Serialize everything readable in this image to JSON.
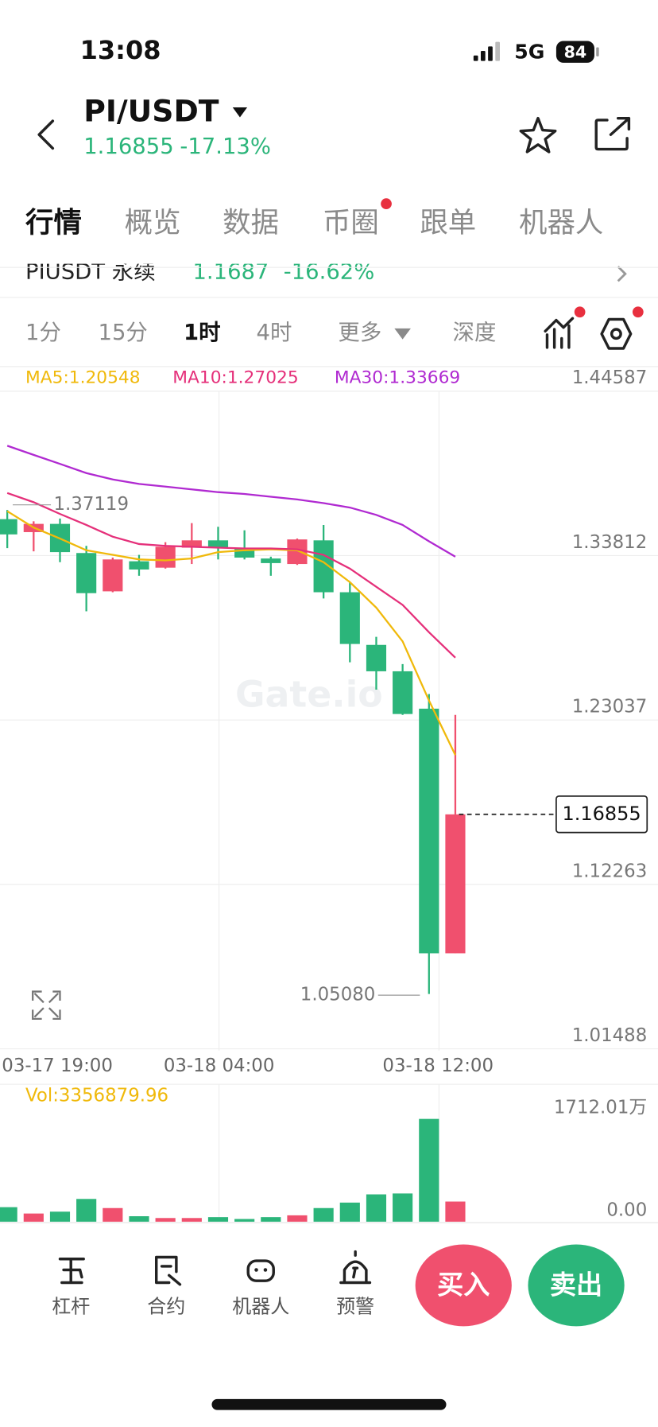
{
  "status_bar": {
    "time": "13:08",
    "network": "5G",
    "battery": "84"
  },
  "header": {
    "pair": "PI/USDT",
    "price": "1.16855",
    "change": "-17.13%"
  },
  "tabs": [
    "行情",
    "概览",
    "数据",
    "币圈",
    "跟单",
    "机器人"
  ],
  "perp_row": {
    "name": "PIUSDT 永续",
    "price": "1.1687",
    "change": "-16.62%"
  },
  "intervals": [
    "1分",
    "15分",
    "1时",
    "4时",
    "更多",
    "深度"
  ],
  "chart_data": [
    {
      "type": "candlestick",
      "open": [
        1.362,
        1.3535,
        1.3589,
        1.3398,
        1.3147,
        1.3344,
        1.3302,
        1.3433,
        1.3481,
        1.3428,
        1.3362,
        1.3326,
        1.3481,
        1.3141,
        1.2796,
        1.2623,
        1.2378,
        1.0775
      ],
      "high": [
        1.368,
        1.3606,
        1.3624,
        1.3445,
        1.3368,
        1.3386,
        1.3469,
        1.3594,
        1.357,
        1.3547,
        1.3374,
        1.3493,
        1.3582,
        1.3207,
        1.2849,
        1.267,
        1.2474,
        1.2337
      ],
      "low": [
        1.343,
        1.3409,
        1.3338,
        1.3016,
        1.3141,
        1.3249,
        1.3296,
        1.3326,
        1.3356,
        1.3356,
        1.3249,
        1.332,
        1.31,
        1.2682,
        1.2503,
        1.2337,
        1.0508,
        1.0775
      ],
      "close": [
        1.352,
        1.3589,
        1.3404,
        1.3135,
        1.3356,
        1.329,
        1.3439,
        1.3481,
        1.3433,
        1.3368,
        1.3332,
        1.3487,
        1.3141,
        1.2802,
        1.2623,
        1.2343,
        1.0775,
        1.16855
      ],
      "up_color": "#f0506e",
      "down_color": "#2bb57a",
      "series": [
        {
          "name": "MA5",
          "label": "MA5:1.20548",
          "color": "#f0b90b",
          "values": [
            1.3672,
            1.3565,
            1.3493,
            1.3416,
            1.3386,
            1.3356,
            1.335,
            1.3362,
            1.3404,
            1.3416,
            1.3422,
            1.3416,
            1.3338,
            1.3207,
            1.304,
            1.2819,
            1.2432,
            1.2074
          ]
        },
        {
          "name": "MA10",
          "label": "MA10:1.27025",
          "color": "#e5307a",
          "values": [
            1.3791,
            1.3731,
            1.3654,
            1.3582,
            1.3505,
            1.3457,
            1.3445,
            1.3439,
            1.3433,
            1.3428,
            1.3428,
            1.3422,
            1.3386,
            1.3296,
            1.3177,
            1.3058,
            1.2879,
            1.2712
          ]
        },
        {
          "name": "MA30",
          "label": "MA30:1.33669",
          "color": "#b02ad1",
          "values": [
            1.4101,
            1.4041,
            1.3982,
            1.3922,
            1.388,
            1.3851,
            1.3833,
            1.3815,
            1.3797,
            1.3785,
            1.3767,
            1.3749,
            1.3725,
            1.3696,
            1.3648,
            1.3582,
            1.3475,
            1.3374
          ]
        }
      ],
      "ylim": [
        1.01488,
        1.44587
      ],
      "yticks": [
        1.44587,
        1.33812,
        1.23037,
        1.12263,
        1.01488
      ],
      "grid": true,
      "xtick_labels": [
        "03-17 19:00",
        "03-18 04:00",
        "03-18 12:00"
      ],
      "high_label": "1.37119",
      "low_label": "1.05080",
      "last_price": 1.16855,
      "watermark": "Gate.io"
    },
    {
      "type": "bar",
      "title": "Vol:3356879.96",
      "values": [
        2420000,
        1360000,
        1670000,
        3790000,
        2270000,
        910000,
        610000,
        610000,
        760000,
        450000,
        760000,
        1060000,
        2270000,
        3180000,
        4550000,
        4700000,
        17120100,
        3356879.96
      ],
      "ylim": [
        0,
        17120100
      ],
      "yticks": [
        {
          "value": 17120100,
          "label": "1712.01万"
        },
        {
          "value": 0,
          "label": "0.00"
        }
      ]
    }
  ],
  "bottom_bar": {
    "items": [
      "杠杆",
      "合约",
      "机器人",
      "预警"
    ],
    "buy": "买入",
    "sell": "卖出"
  }
}
